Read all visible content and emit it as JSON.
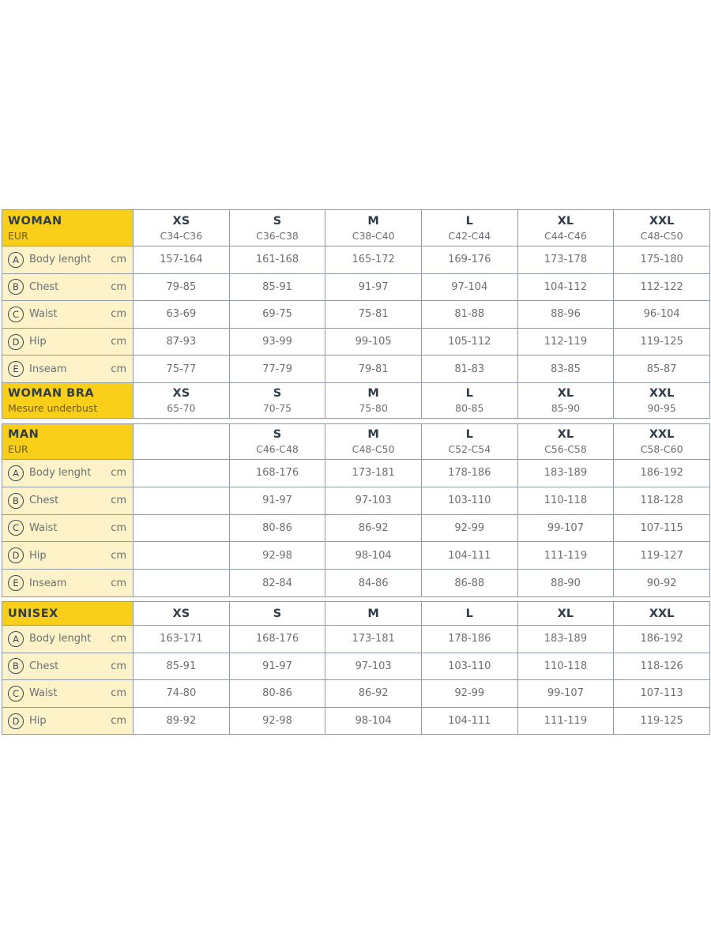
{
  "colors": {
    "header_yellow": "#f9cf1a",
    "label_bg": "#fdf2c8",
    "border": "#8e9aa5",
    "heading_text": "#2f3d4a"
  },
  "sections": [
    {
      "title": "WOMAN",
      "subtitle": "EUR",
      "sizes": [
        {
          "size": "XS",
          "code": "C34-C36"
        },
        {
          "size": "S",
          "code": "C36-C38"
        },
        {
          "size": "M",
          "code": "C38-C40"
        },
        {
          "size": "L",
          "code": "C42-C44"
        },
        {
          "size": "XL",
          "code": "C44-C46"
        },
        {
          "size": "XXL",
          "code": "C48-C50"
        }
      ],
      "rows": [
        {
          "letter": "A",
          "name": "Body lenght",
          "unit": "cm",
          "values": [
            "157-164",
            "161-168",
            "165-172",
            "169-176",
            "173-178",
            "175-180"
          ]
        },
        {
          "letter": "B",
          "name": "Chest",
          "unit": "cm",
          "values": [
            "79-85",
            "85-91",
            "91-97",
            "97-104",
            "104-112",
            "112-122"
          ]
        },
        {
          "letter": "C",
          "name": "Waist",
          "unit": "cm",
          "values": [
            "63-69",
            "69-75",
            "75-81",
            "81-88",
            "88-96",
            "96-104"
          ]
        },
        {
          "letter": "D",
          "name": "Hip",
          "unit": "cm",
          "values": [
            "87-93",
            "93-99",
            "99-105",
            "105-112",
            "112-119",
            "119-125"
          ]
        },
        {
          "letter": "E",
          "name": "Inseam",
          "unit": "cm",
          "values": [
            "75-77",
            "77-79",
            "79-81",
            "81-83",
            "83-85",
            "85-87"
          ]
        }
      ],
      "footer": {
        "title": "WOMAN BRA",
        "subtitle": "Mesure underbust",
        "sizes": [
          {
            "size": "XS",
            "code": "65-70"
          },
          {
            "size": "S",
            "code": "70-75"
          },
          {
            "size": "M",
            "code": "75-80"
          },
          {
            "size": "L",
            "code": "80-85"
          },
          {
            "size": "XL",
            "code": "85-90"
          },
          {
            "size": "XXL",
            "code": "90-95"
          }
        ]
      }
    },
    {
      "title": "MAN",
      "subtitle": "EUR",
      "sizes": [
        {
          "size": "",
          "code": ""
        },
        {
          "size": "S",
          "code": "C46-C48"
        },
        {
          "size": "M",
          "code": "C48-C50"
        },
        {
          "size": "L",
          "code": "C52-C54"
        },
        {
          "size": "XL",
          "code": "C56-C58"
        },
        {
          "size": "XXL",
          "code": "C58-C60"
        }
      ],
      "rows": [
        {
          "letter": "A",
          "name": "Body lenght",
          "unit": "cm",
          "values": [
            "",
            "168-176",
            "173-181",
            "178-186",
            "183-189",
            "186-192"
          ]
        },
        {
          "letter": "B",
          "name": "Chest",
          "unit": "cm",
          "values": [
            "",
            "91-97",
            "97-103",
            "103-110",
            "110-118",
            "118-128"
          ]
        },
        {
          "letter": "C",
          "name": "Waist",
          "unit": "cm",
          "values": [
            "",
            "80-86",
            "86-92",
            "92-99",
            "99-107",
            "107-115"
          ]
        },
        {
          "letter": "D",
          "name": "Hip",
          "unit": "cm",
          "values": [
            "",
            "92-98",
            "98-104",
            "104-111",
            "111-119",
            "119-127"
          ]
        },
        {
          "letter": "E",
          "name": "Inseam",
          "unit": "cm",
          "values": [
            "",
            "82-84",
            "84-86",
            "86-88",
            "88-90",
            "90-92"
          ]
        }
      ]
    },
    {
      "title": "UNISEX",
      "subtitle": "",
      "sizes": [
        {
          "size": "XS",
          "code": ""
        },
        {
          "size": "S",
          "code": ""
        },
        {
          "size": "M",
          "code": ""
        },
        {
          "size": "L",
          "code": ""
        },
        {
          "size": "XL",
          "code": ""
        },
        {
          "size": "XXL",
          "code": ""
        }
      ],
      "rows": [
        {
          "letter": "A",
          "name": "Body lenght",
          "unit": "cm",
          "values": [
            "163-171",
            "168-176",
            "173-181",
            "178-186",
            "183-189",
            "186-192"
          ]
        },
        {
          "letter": "B",
          "name": "Chest",
          "unit": "cm",
          "values": [
            "85-91",
            "91-97",
            "97-103",
            "103-110",
            "110-118",
            "118-126"
          ]
        },
        {
          "letter": "C",
          "name": "Waist",
          "unit": "cm",
          "values": [
            "74-80",
            "80-86",
            "86-92",
            "92-99",
            "99-107",
            "107-113"
          ]
        },
        {
          "letter": "D",
          "name": "Hip",
          "unit": "cm",
          "values": [
            "89-92",
            "92-98",
            "98-104",
            "104-111",
            "111-119",
            "119-125"
          ]
        }
      ]
    }
  ]
}
